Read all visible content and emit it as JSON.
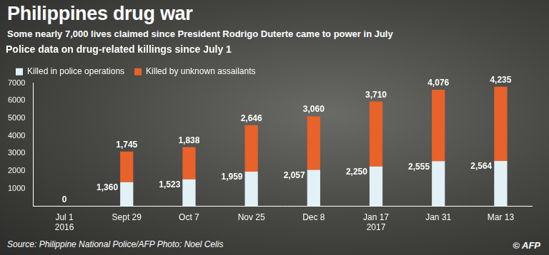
{
  "header": {
    "title": "Philippines drug war",
    "subtitle": "Some nearly 7,000 lives claimed since President Rodrigo Duterte came to power in July"
  },
  "footer": {
    "source": "Source: Philippine National Police/AFP Photo: Noel Celis",
    "credit": "© AFP"
  },
  "chart_data": {
    "type": "bar",
    "title": "Police data on drug-related killings since July 1",
    "categories": [
      "Jul 1 2016",
      "Sept 29",
      "Oct 7",
      "Nov 25",
      "Dec 8",
      "Jan 17 2017",
      "Jan 31",
      "Mar 13"
    ],
    "series": [
      {
        "name": "Killed in police operations",
        "color": "#e2f1f6",
        "values": [
          0,
          1360,
          1523,
          1959,
          2057,
          2250,
          2555,
          2564
        ],
        "value_labels": [
          "0",
          "1,360",
          "1,523",
          "1,959",
          "2,057",
          "2,250",
          "2,555",
          "2,564"
        ]
      },
      {
        "name": "Killed by unknown assailants",
        "color": "#e8622a",
        "values": [
          null,
          1745,
          1838,
          2646,
          3060,
          3710,
          4076,
          4235
        ],
        "value_labels": [
          null,
          "1,745",
          "1,838",
          "2,646",
          "3,060",
          "3,710",
          "4,076",
          "4,235"
        ]
      }
    ],
    "stacked": true,
    "data_labels": true,
    "ylim": [
      0,
      7000
    ],
    "yticks": [
      1000,
      2000,
      3000,
      4000,
      5000,
      6000,
      7000
    ],
    "grid": false,
    "legend": "top-left"
  }
}
